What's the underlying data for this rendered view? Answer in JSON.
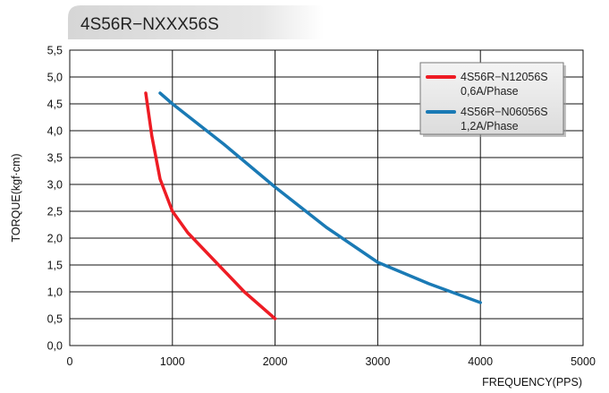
{
  "chart_data": {
    "type": "line",
    "title": "4S56R−NXXX56S",
    "xlabel": "FREQUENCY(PPS)",
    "ylabel": "TORQUE(kgf·cm)",
    "xlim": [
      0,
      5000
    ],
    "ylim": [
      0,
      5.5
    ],
    "x_ticks": [
      "0",
      "1000",
      "2000",
      "3000",
      "4000",
      "5000"
    ],
    "y_ticks": [
      "0,0",
      "0,5",
      "1,0",
      "1,5",
      "2,0",
      "2,5",
      "3,0",
      "3,5",
      "4,0",
      "4,5",
      "5,0",
      "5,5"
    ],
    "grid": true,
    "legend_position": "top-right",
    "series": [
      {
        "name": "4S56R−N12056S",
        "sublabel": "0,6A/Phase",
        "color": "#ee1c24",
        "x": [
          740,
          800,
          880,
          1000,
          1150,
          1400,
          1700,
          2000
        ],
        "y": [
          4.7,
          3.9,
          3.1,
          2.5,
          2.1,
          1.6,
          1.0,
          0.5
        ]
      },
      {
        "name": "4S56R−N06056S",
        "sublabel": "1,2A/Phase",
        "color": "#1a7ab5",
        "x": [
          880,
          1000,
          1500,
          2000,
          2500,
          3000,
          3500,
          4000
        ],
        "y": [
          4.7,
          4.5,
          3.75,
          2.95,
          2.2,
          1.55,
          1.15,
          0.8
        ]
      }
    ]
  }
}
